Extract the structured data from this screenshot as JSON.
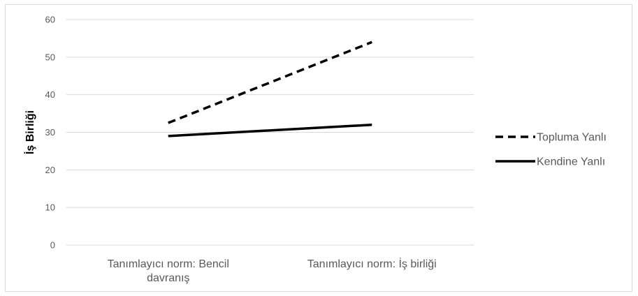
{
  "chart_data": {
    "type": "line",
    "categories": [
      "Tanımlayıcı norm: Bencil davranış",
      "Tanımlayıcı norm: İş birliği"
    ],
    "category_lines": [
      [
        "Tanımlayıcı norm: Bencil",
        "davranış"
      ],
      [
        "Tanımlayıcı norm: İş birliği"
      ]
    ],
    "series": [
      {
        "name": "Topluma Yanlı",
        "values": [
          32.5,
          54
        ],
        "color": "#000000",
        "dash": "dashed"
      },
      {
        "name": "Kendine Yanlı",
        "values": [
          29,
          32
        ],
        "color": "#000000",
        "dash": "solid"
      }
    ],
    "ylabel": "İş Birliği",
    "xlabel": "",
    "ylim": [
      0,
      60
    ],
    "yticks": [
      0,
      10,
      20,
      30,
      40,
      50,
      60
    ],
    "grid": true,
    "legend_position": "right"
  }
}
